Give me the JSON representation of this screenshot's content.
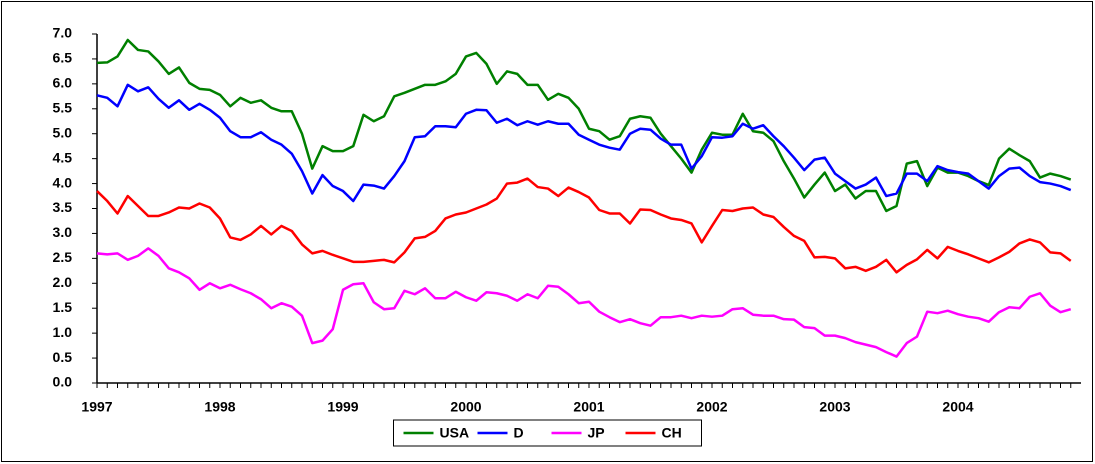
{
  "chart_data": {
    "type": "line",
    "categories": [
      "1997",
      null,
      null,
      null,
      null,
      null,
      null,
      null,
      null,
      null,
      null,
      null,
      "1998",
      null,
      null,
      null,
      null,
      null,
      null,
      null,
      null,
      null,
      null,
      null,
      "1999",
      null,
      null,
      null,
      null,
      null,
      null,
      null,
      null,
      null,
      null,
      null,
      "2000",
      null,
      null,
      null,
      null,
      null,
      null,
      null,
      null,
      null,
      null,
      null,
      "2001",
      null,
      null,
      null,
      null,
      null,
      null,
      null,
      null,
      null,
      null,
      null,
      "2002",
      null,
      null,
      null,
      null,
      null,
      null,
      null,
      null,
      null,
      null,
      null,
      "2003",
      null,
      null,
      null,
      null,
      null,
      null,
      null,
      null,
      null,
      null,
      null,
      "2004",
      null,
      null,
      null,
      null,
      null,
      null,
      null,
      null,
      null,
      null,
      null
    ],
    "series": [
      {
        "name": "USA",
        "color": "#008000",
        "values": [
          6.42,
          6.43,
          6.55,
          6.88,
          6.68,
          6.65,
          6.45,
          6.2,
          6.33,
          6.02,
          5.9,
          5.88,
          5.78,
          5.55,
          5.72,
          5.62,
          5.67,
          5.52,
          5.45,
          5.45,
          5.0,
          4.3,
          4.75,
          4.65,
          4.65,
          4.75,
          5.38,
          5.25,
          5.35,
          5.75,
          5.82,
          5.9,
          5.98,
          5.98,
          6.05,
          6.2,
          6.55,
          6.62,
          6.4,
          6.0,
          6.25,
          6.2,
          5.98,
          5.98,
          5.68,
          5.8,
          5.72,
          5.5,
          5.1,
          5.05,
          4.88,
          4.95,
          5.3,
          5.35,
          5.32,
          5.0,
          4.75,
          4.5,
          4.22,
          4.68,
          5.02,
          4.98,
          4.98,
          5.4,
          5.05,
          5.02,
          4.85,
          4.45,
          4.1,
          3.72,
          3.98,
          4.22,
          3.85,
          3.98,
          3.7,
          3.85,
          3.85,
          3.45,
          3.55,
          4.4,
          4.45,
          3.95,
          4.32,
          4.22,
          4.22,
          4.15,
          4.05,
          3.97,
          4.5,
          4.7,
          4.57,
          4.45,
          4.12,
          4.2,
          4.15,
          4.08
        ]
      },
      {
        "name": "D",
        "color": "#0000ff",
        "values": [
          5.77,
          5.72,
          5.55,
          5.98,
          5.85,
          5.93,
          5.7,
          5.52,
          5.67,
          5.48,
          5.6,
          5.48,
          5.32,
          5.05,
          4.93,
          4.93,
          5.03,
          4.88,
          4.78,
          4.6,
          4.25,
          3.8,
          4.17,
          3.95,
          3.85,
          3.65,
          3.98,
          3.96,
          3.9,
          4.15,
          4.45,
          4.93,
          4.95,
          5.15,
          5.15,
          5.13,
          5.4,
          5.48,
          5.47,
          5.22,
          5.3,
          5.17,
          5.25,
          5.18,
          5.25,
          5.2,
          5.2,
          4.98,
          4.88,
          4.78,
          4.72,
          4.68,
          5.0,
          5.1,
          5.08,
          4.9,
          4.78,
          4.78,
          4.3,
          4.55,
          4.93,
          4.92,
          4.95,
          5.2,
          5.1,
          5.17,
          4.95,
          4.75,
          4.52,
          4.27,
          4.48,
          4.52,
          4.2,
          4.05,
          3.9,
          3.98,
          4.12,
          3.75,
          3.8,
          4.2,
          4.2,
          4.05,
          4.35,
          4.27,
          4.23,
          4.2,
          4.05,
          3.9,
          4.15,
          4.3,
          4.32,
          4.15,
          4.03,
          4.0,
          3.95,
          3.87
        ]
      },
      {
        "name": "JP",
        "color": "#ff00ff",
        "values": [
          2.6,
          2.58,
          2.6,
          2.47,
          2.55,
          2.7,
          2.55,
          2.3,
          2.22,
          2.1,
          1.87,
          2.0,
          1.9,
          1.97,
          1.88,
          1.8,
          1.68,
          1.5,
          1.6,
          1.53,
          1.35,
          0.8,
          0.85,
          1.08,
          1.87,
          1.98,
          2.0,
          1.62,
          1.48,
          1.5,
          1.85,
          1.78,
          1.9,
          1.7,
          1.7,
          1.83,
          1.72,
          1.65,
          1.82,
          1.8,
          1.75,
          1.65,
          1.78,
          1.7,
          1.95,
          1.93,
          1.78,
          1.6,
          1.63,
          1.43,
          1.32,
          1.22,
          1.28,
          1.2,
          1.15,
          1.32,
          1.32,
          1.35,
          1.3,
          1.35,
          1.33,
          1.35,
          1.48,
          1.5,
          1.37,
          1.35,
          1.35,
          1.28,
          1.27,
          1.12,
          1.1,
          0.95,
          0.95,
          0.9,
          0.82,
          0.77,
          0.72,
          0.62,
          0.53,
          0.8,
          0.93,
          1.43,
          1.4,
          1.45,
          1.38,
          1.33,
          1.3,
          1.23,
          1.42,
          1.52,
          1.5,
          1.73,
          1.8,
          1.55,
          1.42,
          1.48
        ]
      },
      {
        "name": "CH",
        "color": "#ff0000",
        "values": [
          3.85,
          3.65,
          3.4,
          3.75,
          3.55,
          3.35,
          3.35,
          3.42,
          3.52,
          3.5,
          3.6,
          3.52,
          3.3,
          2.92,
          2.87,
          2.98,
          3.15,
          2.98,
          3.15,
          3.05,
          2.78,
          2.6,
          2.65,
          2.57,
          2.5,
          2.43,
          2.43,
          2.45,
          2.47,
          2.42,
          2.62,
          2.9,
          2.93,
          3.05,
          3.3,
          3.38,
          3.42,
          3.5,
          3.58,
          3.7,
          4.0,
          4.02,
          4.1,
          3.93,
          3.9,
          3.75,
          3.92,
          3.83,
          3.72,
          3.47,
          3.4,
          3.4,
          3.2,
          3.48,
          3.47,
          3.38,
          3.3,
          3.27,
          3.2,
          2.82,
          3.15,
          3.47,
          3.45,
          3.5,
          3.52,
          3.38,
          3.33,
          3.13,
          2.95,
          2.85,
          2.52,
          2.53,
          2.5,
          2.3,
          2.33,
          2.25,
          2.33,
          2.47,
          2.22,
          2.37,
          2.48,
          2.67,
          2.5,
          2.73,
          2.65,
          2.58,
          2.5,
          2.42,
          2.52,
          2.63,
          2.8,
          2.88,
          2.82,
          2.62,
          2.6,
          2.45
        ]
      }
    ],
    "ylim": [
      0,
      7
    ],
    "yticks": [
      {
        "value": 0,
        "label": "0.0"
      },
      {
        "value": 0.5,
        "label": "0.5"
      },
      {
        "value": 1,
        "label": "1.0"
      },
      {
        "value": 1.5,
        "label": "1.5"
      },
      {
        "value": 2,
        "label": "2.0"
      },
      {
        "value": 2.5,
        "label": "2.5"
      },
      {
        "value": 3,
        "label": "3.0"
      },
      {
        "value": 3.5,
        "label": "3.5"
      },
      {
        "value": 4,
        "label": "4.0"
      },
      {
        "value": 4.5,
        "label": "4.5"
      },
      {
        "value": 5,
        "label": "5.0"
      },
      {
        "value": 5.5,
        "label": "5.5"
      },
      {
        "value": 6,
        "label": "6.0"
      },
      {
        "value": 6.5,
        "label": "6.5"
      },
      {
        "value": 7,
        "label": "7.0"
      }
    ],
    "grid": false,
    "legend": "bottom"
  }
}
